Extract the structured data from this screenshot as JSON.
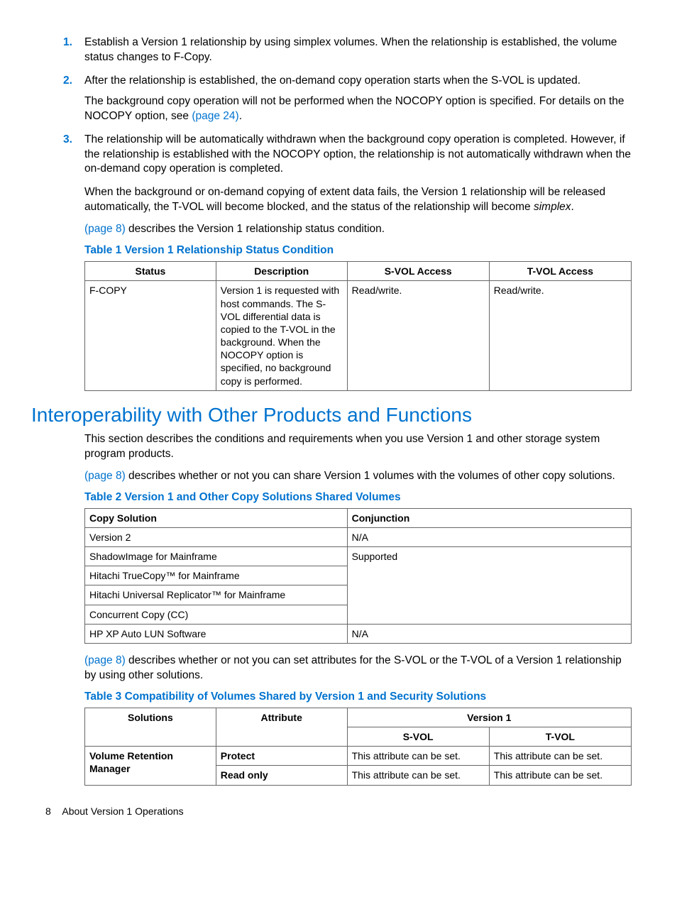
{
  "list": {
    "items": [
      {
        "num": "1.",
        "text": "Establish a Version 1 relationship by using simplex volumes. When the relationship is established, the volume status changes to F-Copy."
      },
      {
        "num": "2.",
        "text": "After the relationship is established, the on-demand copy operation starts when the S-VOL is updated.",
        "extra": "The background copy operation will not be performed when the NOCOPY option is specified. For details on the NOCOPY option, see ",
        "link": "(page 24)",
        "tail": "."
      },
      {
        "num": "3.",
        "text": "The relationship will be automatically withdrawn when the background copy operation is completed. However, if the relationship is established with the NOCOPY option, the relationship is not automatically withdrawn when the on-demand copy operation is completed."
      }
    ]
  },
  "para1_a": "When the background or on-demand copying of extent data fails, the Version 1 relationship will be released automatically, the T-VOL will become blocked, and the status of the relationship will become ",
  "para1_b": "simplex",
  "para1_c": ".",
  "para2_link": "(page 8)",
  "para2_tail": " describes the Version 1 relationship status condition.",
  "table1": {
    "caption": "Table 1 Version 1 Relationship Status Condition",
    "headers": [
      "Status",
      "Description",
      "S-VOL Access",
      "T-VOL Access"
    ],
    "row": [
      "F-COPY",
      "Version 1 is requested with host commands. The S-VOL differential data is copied to the T-VOL in the background. When the NOCOPY option is specified, no background copy is performed.",
      "Read/write.",
      "Read/write."
    ]
  },
  "section_heading": "Interoperability with Other Products and Functions",
  "para3": "This section describes the conditions and requirements when you use Version 1 and other storage system program products.",
  "para4_link": "(page 8)",
  "para4_tail": " describes whether or not you can share Version 1 volumes with the volumes of other copy solutions.",
  "table2": {
    "caption": "Table 2 Version 1 and Other Copy Solutions Shared Volumes",
    "headers": [
      "Copy Solution",
      "Conjunction"
    ],
    "rows": [
      [
        "Version 2",
        "N/A"
      ],
      [
        "ShadowImage for Mainframe",
        "Supported"
      ],
      [
        "Hitachi TrueCopy™ for Mainframe",
        ""
      ],
      [
        "Hitachi Universal Replicator™ for Mainframe",
        ""
      ],
      [
        "Concurrent Copy (CC)",
        ""
      ],
      [
        "HP XP Auto LUN Software",
        "N/A"
      ]
    ]
  },
  "para5_link": "(page 8)",
  "para5_tail": " describes whether or not you can set attributes for the S-VOL or the T-VOL of a Version 1 relationship by using other solutions.",
  "table3": {
    "caption": "Table 3 Compatibility of Volumes Shared by Version 1 and Security Solutions",
    "h_solutions": "Solutions",
    "h_attribute": "Attribute",
    "h_version": "Version 1",
    "h_svol": "S-VOL",
    "h_tvol": "T-VOL",
    "r1_sol": "Volume Retention Manager",
    "r1_attr": "Protect",
    "r1_sv": "This attribute can be set.",
    "r1_tv": "This attribute can be set.",
    "r2_attr": "Read only",
    "r2_sv": "This attribute can be set.",
    "r2_tv": "This attribute can be set."
  },
  "footer_page": "8",
  "footer_text": "About Version 1 Operations"
}
